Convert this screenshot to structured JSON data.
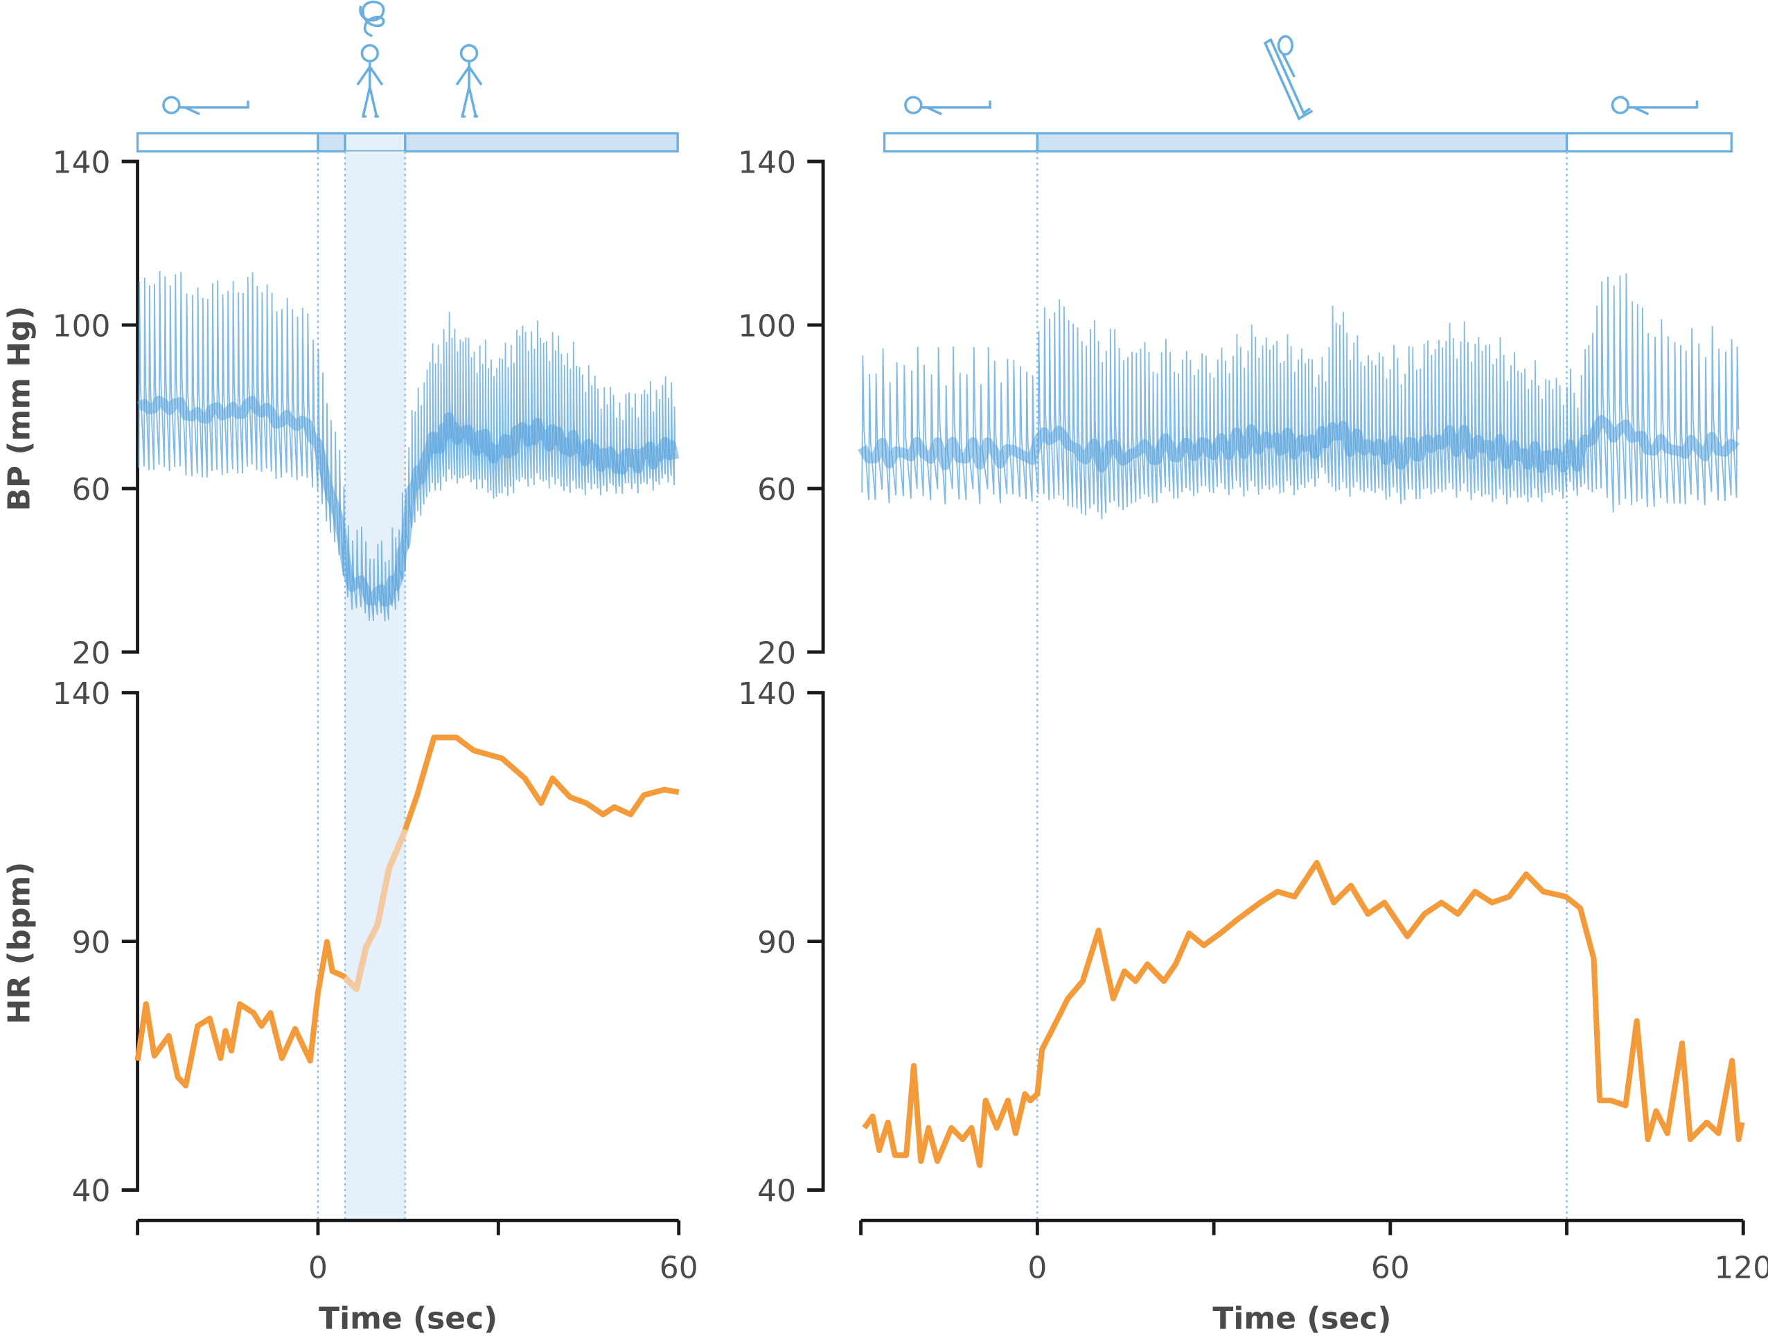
{
  "chart_data": [
    {
      "type": "line",
      "panel": "left",
      "xlabel": "Time (sec)",
      "xlim": [
        -30,
        60
      ],
      "x_ticks": [
        -30,
        0,
        30,
        60
      ],
      "x_tick_labels": [
        "0",
        "60"
      ],
      "x_tick_label_values": [
        0,
        60
      ],
      "bp_axis": {
        "ylabel": "BP (mm Hg)",
        "ylim": [
          20,
          140
        ],
        "ticks": [
          140,
          100,
          60,
          20
        ],
        "tick_labels": [
          "140",
          "100",
          "60",
          "20"
        ]
      },
      "hr_axis": {
        "ylabel": "HR (bpm)",
        "ylim": [
          40,
          140
        ],
        "ticks": [
          140,
          90,
          40
        ],
        "tick_labels": [
          "140",
          "90",
          "40"
        ]
      },
      "phases": [
        {
          "start": -30,
          "end": 0,
          "posture": "supine",
          "fill": "none"
        },
        {
          "start": 0,
          "end": 4.5,
          "posture": "standing",
          "fill": "medium"
        },
        {
          "start": 4.5,
          "end": 14.5,
          "posture": "standing-dizzy",
          "fill": "light"
        },
        {
          "start": 14.5,
          "end": 60,
          "posture": "standing",
          "fill": "medium"
        }
      ],
      "markers": [
        0,
        4.5,
        14.5
      ],
      "bp_envelope": {
        "t": [
          -30,
          -20,
          -10,
          -2,
          0,
          3,
          6,
          10,
          13,
          16,
          19,
          22,
          26,
          30,
          34,
          38,
          42,
          46,
          50,
          55,
          60
        ],
        "systolic": [
          108,
          110,
          108,
          104,
          95,
          70,
          48,
          44,
          47,
          80,
          92,
          99,
          93,
          90,
          98,
          96,
          92,
          85,
          80,
          83,
          85
        ],
        "diastolic": [
          64,
          64,
          64,
          63,
          60,
          45,
          30,
          28,
          30,
          52,
          60,
          63,
          62,
          58,
          62,
          62,
          60,
          60,
          60,
          61,
          63
        ]
      },
      "hr_series": {
        "t": [
          -30,
          -28.6,
          -27.2,
          -24.8,
          -23.3,
          -22,
          -20,
          -18,
          -16.2,
          -15.4,
          -14.4,
          -13,
          -10.7,
          -9.4,
          -7.9,
          -6,
          -3.8,
          -1.3,
          0,
          1.5,
          2.4,
          4.3,
          6.4,
          8,
          9.9,
          11.8,
          14.2,
          16.5,
          19.3,
          23,
          25.9,
          30.6,
          34.4,
          37.1,
          39,
          41.9,
          44.6,
          47.4,
          49.3,
          52,
          54.2,
          57.6,
          60
        ],
        "hr": [
          66,
          77.4,
          67,
          71,
          62.7,
          61,
          73,
          74.5,
          66.5,
          72,
          68,
          77.4,
          75.6,
          73,
          75.6,
          66.5,
          72.4,
          66,
          79.7,
          89.9,
          84,
          83,
          80.4,
          88.8,
          93.3,
          104.6,
          111.4,
          119.4,
          131,
          131,
          128.4,
          126.8,
          122.8,
          117.8,
          122.8,
          119,
          117.8,
          115.5,
          117,
          115.5,
          119.4,
          120.5,
          120
        ],
        "faded_range": [
          4.5,
          14.5
        ]
      }
    },
    {
      "type": "line",
      "panel": "right",
      "xlabel": "Time (sec)",
      "xlim": [
        -30,
        120
      ],
      "x_ticks": [
        -30,
        0,
        30,
        60,
        90,
        120
      ],
      "x_tick_labels": [
        "0",
        "60",
        "120"
      ],
      "x_tick_label_values": [
        0,
        60,
        120
      ],
      "bp_axis": {
        "ylim": [
          20,
          140
        ],
        "ticks": [
          140,
          100,
          60,
          20
        ],
        "tick_labels": [
          "140",
          "100",
          "60",
          "20"
        ]
      },
      "hr_axis": {
        "ylim": [
          40,
          140
        ],
        "ticks": [
          140,
          90,
          40
        ],
        "tick_labels": [
          "140",
          "90",
          "40"
        ]
      },
      "phases": [
        {
          "start": -26,
          "end": 0,
          "posture": "supine",
          "fill": "none"
        },
        {
          "start": 0,
          "end": 90,
          "posture": "head-up-tilt",
          "fill": "medium"
        },
        {
          "start": 90,
          "end": 118,
          "posture": "supine",
          "fill": "none"
        }
      ],
      "markers": [
        0,
        90
      ],
      "bp_envelope": {
        "t": [
          -30,
          -15,
          -1,
          1,
          5,
          10,
          20,
          30,
          37,
          45,
          49,
          50,
          55,
          62,
          70,
          77,
          85,
          92,
          95,
          98,
          103,
          110,
          120
        ],
        "systolic": [
          90,
          90,
          90,
          100,
          102,
          96,
          92,
          90,
          96,
          92,
          87,
          104,
          92,
          90,
          97,
          94,
          86,
          84,
          105,
          115,
          100,
          96,
          95
        ],
        "diastolic": [
          58,
          58,
          58,
          57,
          56,
          54,
          58,
          60,
          60,
          60,
          64,
          60,
          60,
          58,
          60,
          58,
          58,
          60,
          60,
          56,
          56,
          57,
          58
        ]
      },
      "hr_series": {
        "t": [
          -29.4,
          -28,
          -26.9,
          -25.4,
          -24.2,
          -22.3,
          -21,
          -19.8,
          -18.5,
          -17,
          -14.6,
          -12.7,
          -11.2,
          -9.8,
          -8.8,
          -6.9,
          -5,
          -3.7,
          -2.1,
          -1.2,
          0,
          0.8,
          2.3,
          5.2,
          7.7,
          10.4,
          12.9,
          14.8,
          16.7,
          18.7,
          21.5,
          23.5,
          25.8,
          28.3,
          31.1,
          34,
          37.9,
          40.8,
          43.7,
          47.5,
          50.4,
          53.3,
          56.2,
          59,
          62.9,
          65.8,
          68.7,
          71.5,
          74.4,
          77.3,
          80.2,
          83.1,
          86,
          89.8,
          92.3,
          94.6,
          95.6,
          97.5,
          100,
          101.9,
          103.8,
          105.2,
          107.1,
          109.6,
          111,
          113.8,
          115.8,
          118.1,
          119.2,
          119.8
        ],
        "hr": [
          52.5,
          54.8,
          48,
          53.6,
          47,
          47,
          65,
          45.8,
          52.5,
          45.8,
          52.5,
          50.2,
          52.5,
          45,
          58,
          52.5,
          58,
          51.4,
          59.3,
          58,
          59.3,
          68.3,
          71.7,
          78.5,
          82,
          92.2,
          78.5,
          84,
          82,
          85.4,
          82,
          85.4,
          91.6,
          89.2,
          91.6,
          94.4,
          97.8,
          100,
          99,
          105.8,
          97.8,
          101.2,
          95.5,
          97.8,
          91,
          95.5,
          97.8,
          95.5,
          100,
          97.8,
          99,
          103.5,
          100,
          99,
          96.7,
          86.5,
          58,
          58,
          57,
          74,
          50.2,
          55.9,
          51.4,
          69.5,
          50.2,
          53.6,
          51.4,
          66,
          50.2,
          53.6
        ]
      }
    }
  ],
  "colors": {
    "bp": "#6aaee0",
    "bp_mean": "#5aa3db",
    "hr": "#f39a3a",
    "hr_faded": "#f2c9a0",
    "phase_fill": "#cfe2f4",
    "phase_fill_light": "#e6f0fa",
    "marker": "#8dbde6",
    "axis": "#1a1a1a"
  },
  "icons": [
    "supine-figure-icon",
    "standing-figure-icon",
    "dizziness-spiral-icon",
    "tilt-table-figure-icon"
  ]
}
